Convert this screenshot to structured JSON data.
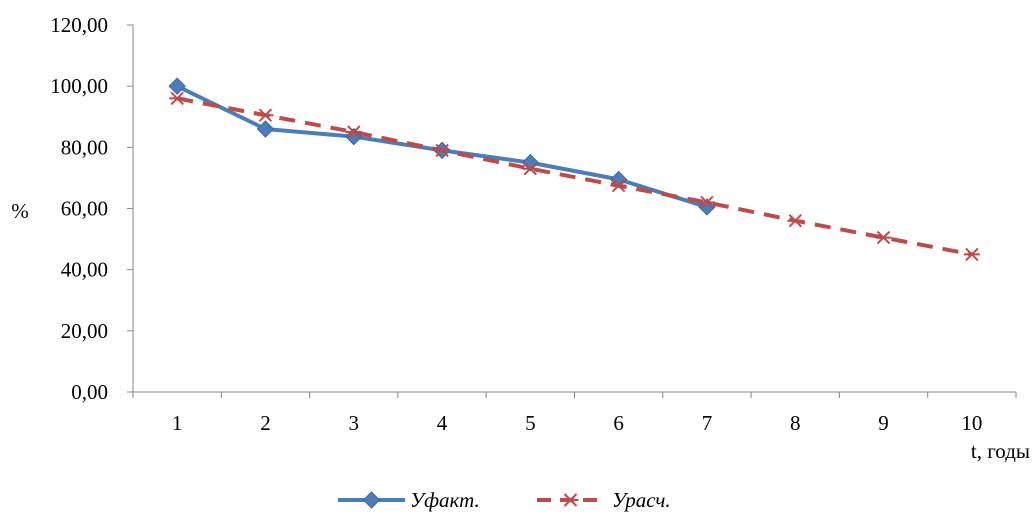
{
  "chart_data": {
    "type": "line",
    "title": "",
    "xlabel": "t, годы",
    "ylabel": "%",
    "categories": [
      "1",
      "2",
      "3",
      "4",
      "5",
      "6",
      "7",
      "8",
      "9",
      "10"
    ],
    "ylim": [
      0,
      120
    ],
    "yticks": [
      "0,00",
      "20,00",
      "40,00",
      "60,00",
      "80,00",
      "100,00",
      "120,00"
    ],
    "grid": false,
    "legend": "bottom",
    "series": [
      {
        "name": "Уфакт.",
        "color": "#4A7EBB",
        "style": "solid",
        "marker": "diamond",
        "values": [
          100.0,
          86.0,
          83.5,
          79.0,
          75.0,
          69.5,
          60.5,
          null,
          null,
          null
        ]
      },
      {
        "name": "Урасч.",
        "color": "#BE4B48",
        "style": "dashed",
        "marker": "star",
        "values": [
          96.0,
          90.5,
          85.0,
          79.0,
          73.0,
          67.5,
          62.0,
          56.0,
          50.5,
          45.0
        ]
      }
    ]
  }
}
